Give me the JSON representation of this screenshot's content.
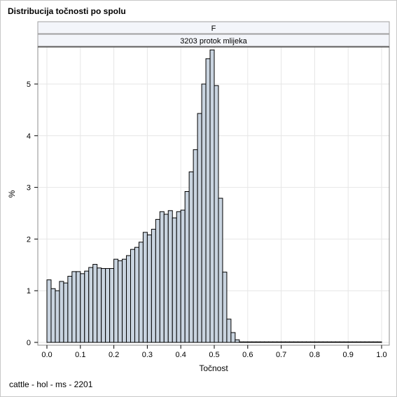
{
  "title": "Distribucija točnosti po spolu",
  "footnote": "cattle - hol - ms - 2201",
  "panel": {
    "header1": "F",
    "header2": "3203 protok mlijeka"
  },
  "colors": {
    "bar_fill": "#c9d4e0",
    "bar_stroke": "#000000",
    "grid": "#e6e6e6",
    "header_fill": "#f3f5fa"
  },
  "chart_data": {
    "type": "bar",
    "title": "Distribucija točnosti po spolu",
    "xlabel": "Točnost",
    "ylabel": "%",
    "xlim": [
      0.0,
      1.0
    ],
    "ylim": [
      0,
      5.75
    ],
    "xticks": [
      "0.0",
      "0.1",
      "0.2",
      "0.3",
      "0.4",
      "0.5",
      "0.6",
      "0.7",
      "0.8",
      "0.9",
      "1.0"
    ],
    "yticks": [
      "0",
      "1",
      "2",
      "3",
      "4",
      "5"
    ],
    "bin_width": 0.0125,
    "bin_start": 0.0,
    "values": [
      1.21,
      1.04,
      1.0,
      1.18,
      1.15,
      1.28,
      1.37,
      1.37,
      1.33,
      1.38,
      1.45,
      1.51,
      1.44,
      1.43,
      1.43,
      1.43,
      1.61,
      1.58,
      1.61,
      1.68,
      1.8,
      1.84,
      1.94,
      2.13,
      2.08,
      2.19,
      2.38,
      2.53,
      2.48,
      2.55,
      2.41,
      2.53,
      2.56,
      2.92,
      3.3,
      3.73,
      4.43,
      5.0,
      5.49,
      5.66,
      4.97,
      2.79,
      1.36,
      0.45,
      0.19,
      0.05,
      0.01,
      0.01,
      0.01,
      0.01,
      0.01,
      0.01,
      0.01,
      0.01,
      0.01,
      0.01,
      0.01,
      0.01,
      0.01,
      0.01,
      0.01,
      0.01,
      0.01,
      0.01,
      0.01,
      0.01,
      0.01,
      0.01,
      0.01,
      0.01,
      0.01,
      0.01,
      0.01,
      0.01,
      0.01,
      0.01,
      0.01,
      0.01,
      0.01,
      0.01
    ],
    "grid": true,
    "legend": "none"
  }
}
